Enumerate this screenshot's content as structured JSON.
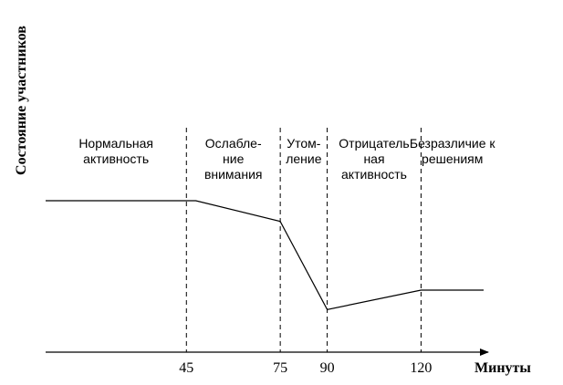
{
  "chart_data": {
    "type": "line",
    "title": "",
    "xlabel": "Минуты",
    "ylabel": "Состояние участников",
    "xlim": [
      0,
      140
    ],
    "ylim": [
      0,
      100
    ],
    "grid": false,
    "x_ticks": [
      {
        "value": 45,
        "label": "45"
      },
      {
        "value": 75,
        "label": "75"
      },
      {
        "value": 90,
        "label": "90"
      },
      {
        "value": 120,
        "label": "120"
      }
    ],
    "phase_boundaries": [
      45,
      75,
      90,
      120
    ],
    "phases": [
      {
        "lines": [
          "Нормальная",
          "активность"
        ]
      },
      {
        "lines": [
          "Ослабле-",
          "ние",
          "внимания"
        ]
      },
      {
        "lines": [
          "Утом-",
          "ление"
        ]
      },
      {
        "lines": [
          "Отрицатель",
          "ная",
          "активность"
        ]
      },
      {
        "lines": [
          "Безразличие к",
          "решениям"
        ]
      }
    ],
    "series": [
      {
        "x": [
          0,
          48,
          75,
          90,
          120,
          140
        ],
        "y": [
          100,
          100,
          84,
          16,
          31,
          31
        ]
      }
    ],
    "colors": {
      "line": "#000000",
      "axis": "#000000"
    }
  }
}
